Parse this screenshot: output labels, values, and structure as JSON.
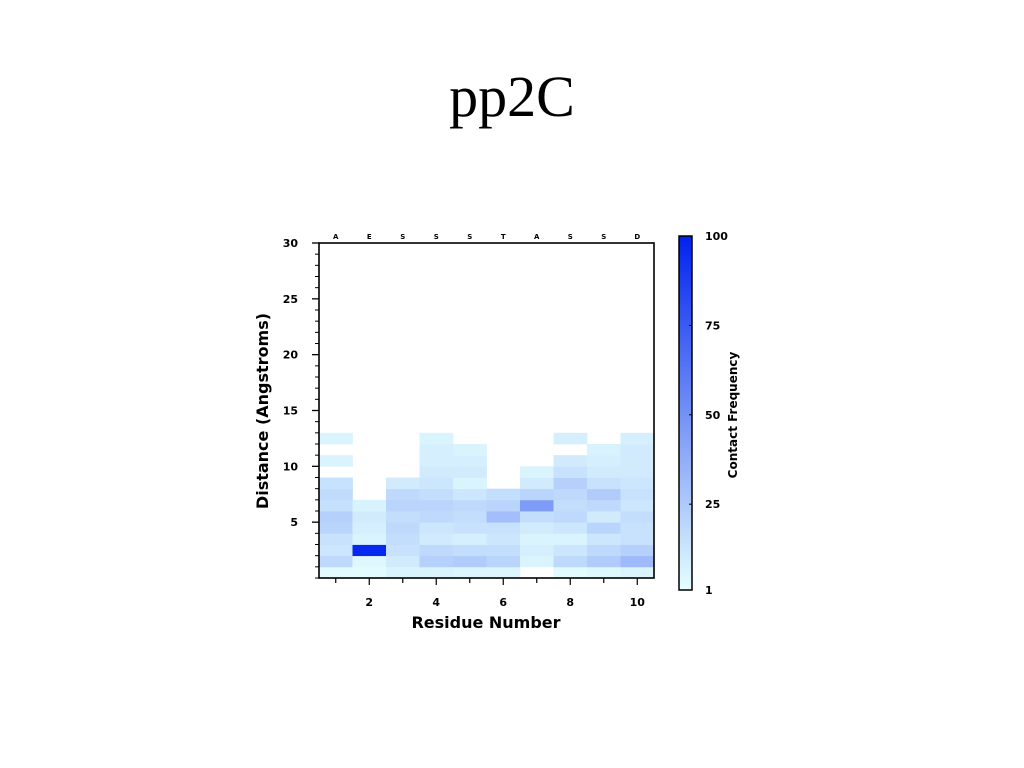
{
  "slide": {
    "title": "pp2C"
  },
  "chart_data": {
    "type": "heatmap",
    "title": "",
    "xlabel": "Residue Number",
    "ylabel": "Distance (Angstroms)",
    "xlim": [
      0.5,
      10.5
    ],
    "ylim": [
      0,
      30
    ],
    "x_ticks": [
      2,
      4,
      6,
      8,
      10
    ],
    "y_ticks": [
      5,
      10,
      15,
      20,
      25,
      30
    ],
    "residue_labels": [
      "A",
      "E",
      "S",
      "S",
      "S",
      "T",
      "A",
      "S",
      "S",
      "D"
    ],
    "colorbar": {
      "label": "Contact Frequency",
      "ticks": [
        1,
        25,
        50,
        75,
        100
      ],
      "range": [
        1,
        100
      ],
      "color_low": "#e6ffff",
      "color_high": "#0022ee"
    },
    "bin_size": 1,
    "columns": [
      {
        "residue": 1,
        "bins": [
          [
            0,
            3
          ],
          [
            1,
            18
          ],
          [
            2,
            12
          ],
          [
            3,
            14
          ],
          [
            4,
            20
          ],
          [
            5,
            22
          ],
          [
            6,
            15
          ],
          [
            7,
            17
          ],
          [
            8,
            14
          ],
          [
            10,
            6
          ],
          [
            12,
            6
          ]
        ]
      },
      {
        "residue": 2,
        "bins": [
          [
            0,
            3
          ],
          [
            1,
            4
          ],
          [
            2,
            97
          ],
          [
            3,
            6
          ],
          [
            4,
            8
          ],
          [
            5,
            10
          ],
          [
            6,
            7
          ]
        ]
      },
      {
        "residue": 3,
        "bins": [
          [
            0,
            6
          ],
          [
            1,
            10
          ],
          [
            2,
            14
          ],
          [
            3,
            16
          ],
          [
            4,
            18
          ],
          [
            5,
            16
          ],
          [
            6,
            20
          ],
          [
            7,
            18
          ],
          [
            8,
            10
          ]
        ]
      },
      {
        "residue": 4,
        "bins": [
          [
            0,
            6
          ],
          [
            1,
            22
          ],
          [
            2,
            18
          ],
          [
            3,
            10
          ],
          [
            4,
            12
          ],
          [
            5,
            18
          ],
          [
            6,
            20
          ],
          [
            7,
            16
          ],
          [
            8,
            12
          ],
          [
            9,
            10
          ],
          [
            10,
            8
          ],
          [
            11,
            8
          ],
          [
            12,
            6
          ]
        ]
      },
      {
        "residue": 5,
        "bins": [
          [
            0,
            5
          ],
          [
            1,
            24
          ],
          [
            2,
            16
          ],
          [
            3,
            8
          ],
          [
            4,
            14
          ],
          [
            5,
            16
          ],
          [
            6,
            18
          ],
          [
            7,
            12
          ],
          [
            8,
            6
          ],
          [
            9,
            10
          ],
          [
            10,
            8
          ],
          [
            11,
            6
          ]
        ]
      },
      {
        "residue": 6,
        "bins": [
          [
            0,
            5
          ],
          [
            1,
            20
          ],
          [
            2,
            16
          ],
          [
            3,
            12
          ],
          [
            4,
            14
          ],
          [
            5,
            30
          ],
          [
            6,
            20
          ],
          [
            7,
            16
          ]
        ]
      },
      {
        "residue": 7,
        "bins": [
          [
            1,
            6
          ],
          [
            2,
            8
          ],
          [
            3,
            6
          ],
          [
            4,
            10
          ],
          [
            5,
            16
          ],
          [
            6,
            46
          ],
          [
            7,
            20
          ],
          [
            8,
            10
          ],
          [
            9,
            6
          ]
        ]
      },
      {
        "residue": 8,
        "bins": [
          [
            0,
            3
          ],
          [
            1,
            18
          ],
          [
            2,
            12
          ],
          [
            3,
            6
          ],
          [
            4,
            12
          ],
          [
            5,
            18
          ],
          [
            6,
            16
          ],
          [
            7,
            18
          ],
          [
            8,
            22
          ],
          [
            9,
            14
          ],
          [
            10,
            10
          ],
          [
            12,
            8
          ]
        ]
      },
      {
        "residue": 9,
        "bins": [
          [
            0,
            4
          ],
          [
            1,
            24
          ],
          [
            2,
            18
          ],
          [
            3,
            12
          ],
          [
            4,
            20
          ],
          [
            5,
            10
          ],
          [
            6,
            18
          ],
          [
            7,
            24
          ],
          [
            8,
            14
          ],
          [
            9,
            10
          ],
          [
            10,
            8
          ],
          [
            11,
            7
          ]
        ]
      },
      {
        "residue": 10,
        "bins": [
          [
            0,
            6
          ],
          [
            1,
            32
          ],
          [
            2,
            22
          ],
          [
            3,
            14
          ],
          [
            4,
            14
          ],
          [
            5,
            16
          ],
          [
            6,
            12
          ],
          [
            7,
            14
          ],
          [
            8,
            12
          ],
          [
            9,
            10
          ],
          [
            10,
            10
          ],
          [
            11,
            10
          ],
          [
            12,
            8
          ]
        ]
      }
    ]
  }
}
